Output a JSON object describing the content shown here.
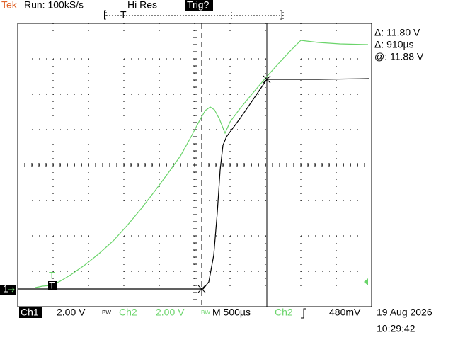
{
  "header": {
    "brand": "Tek",
    "status": "Run: 100kS/s",
    "mode": "Hi Res",
    "trigger": "Trig?",
    "position_marker": "T"
  },
  "readouts": [
    "Δ: 11.80 V",
    "Δ: 910µs",
    "@: 11.88 V"
  ],
  "markers": {
    "ground": "1",
    "trigger_point": "T",
    "trigger_level": "T"
  },
  "footer": {
    "ch1": "Ch1",
    "ch1_scale": "2.00 V",
    "ch1_bw": "BW",
    "ch2": "Ch2",
    "ch2_scale": "2.00 V",
    "ch2_bw": "BW",
    "timebase": "M 500µs",
    "trig_source": "Ch2",
    "trig_level": "480mV",
    "date": "19 Aug 2026",
    "time": "10:29:42"
  }
}
